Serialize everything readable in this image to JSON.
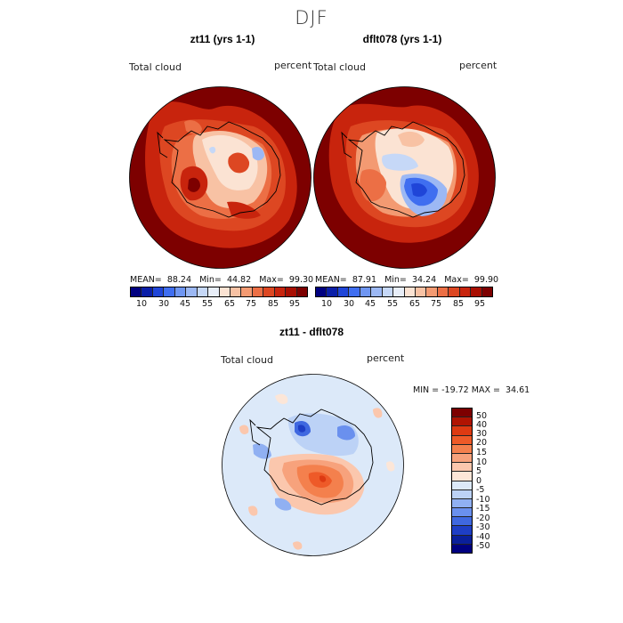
{
  "figure": {
    "season": "DJF",
    "panels": [
      {
        "title": "zt11 (yrs 1-1)",
        "variable_label": "Total cloud",
        "units": "percent",
        "stats": {
          "mean_label": "MEAN=",
          "mean": "88.24",
          "min_label": "Min=",
          "min": "44.82",
          "max_label": "Max=",
          "max": "99.30"
        }
      },
      {
        "title": "dflt078 (yrs 1-1)",
        "variable_label": "Total cloud",
        "units": "percent",
        "stats": {
          "mean_label": "MEAN=",
          "mean": "87.91",
          "min_label": "Min=",
          "min": "34.24",
          "max_label": "Max=",
          "max": "99.90"
        }
      }
    ],
    "diff_panel": {
      "title": "zt11 - dflt078",
      "variable_label": "Total cloud",
      "units": "percent",
      "range_text": "MIN = -19.72 MAX =  34.61"
    },
    "abs_colorbar": {
      "ticks": [
        "10",
        "30",
        "45",
        "55",
        "65",
        "75",
        "85",
        "95"
      ],
      "colors": [
        "#000080",
        "#0b1fa8",
        "#1f45d8",
        "#3f6ef0",
        "#6f96f2",
        "#9cb8f4",
        "#c6d8f7",
        "#e8eef8",
        "#fbe3d3",
        "#f8c2a4",
        "#f39a72",
        "#ec6f45",
        "#dd4722",
        "#c8240d",
        "#a80e02",
        "#7d0000"
      ]
    },
    "diff_colorbar": {
      "ticks": [
        "50",
        "40",
        "30",
        "20",
        "15",
        "10",
        "5",
        "0",
        "-5",
        "-10",
        "-15",
        "-20",
        "-30",
        "-40",
        "-50"
      ],
      "colors": [
        "#7d0000",
        "#b01402",
        "#dd3a12",
        "#ee5a28",
        "#f4804d",
        "#f7a27c",
        "#fbc7ad",
        "#fce6d8",
        "#dce9f9",
        "#bcd2f6",
        "#90b0f2",
        "#6a90ee",
        "#3f68e0",
        "#1e3ec5",
        "#0a1f9a",
        "#000080"
      ]
    }
  }
}
